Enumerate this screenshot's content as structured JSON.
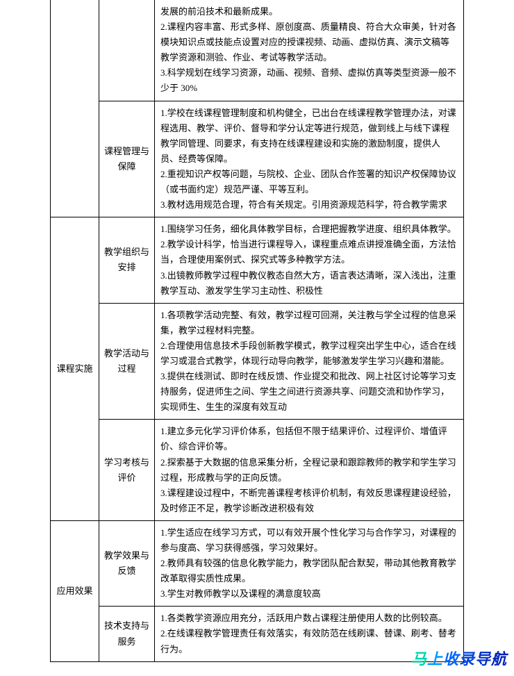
{
  "table": {
    "rows": [
      {
        "cat1": "",
        "cat2": "",
        "content": "发展的前沿技术和最新成果。\n2.课程内容丰富、形式多样、原创度高、质量精良、符合大众审美，针对各模块知识点或技能点设置对应的授课视频、动画、虚拟仿真、演示文稿等教学资源和测验、作业、考试等教学活动。\n3.科学规划在线学习资源，动画、视频、音频、虚拟仿真等类型资源一般不少于 30%"
      },
      {
        "cat1": "",
        "cat2": "课程管理与保障",
        "content": "1.学校在线课程管理制度和机构健全，已出台在线课程教学管理办法，对课程选用、教学、评价、督导和学分认定等进行规范，做到线上与线下课程教学同管理、同要求，有支持在线课程建设和实施的激励制度，提供人员、经费等保障。\n2.重视知识产权等问题，与院校、企业、团队合作签署的知识产权保障协议（或书面约定）规范严谨、平等互利。\n3.教材选用规范合理，符合有关规定。引用资源规范科学，符合教学需求"
      },
      {
        "cat1": "课程实施",
        "cat1_rowspan": 3,
        "cat2": "教学组织与安排",
        "content": "1.围绕学习任务，细化具体教学目标，合理把握教学进度、组织具体教学。\n2.教学设计科学，恰当进行课程导入，课程重点难点讲授准确全面，方法恰当，合理使用案例式、探究式等多种教学方法。\n3.出镜教师教学过程中教仪教态自然大方，语言表达清晰，深入浅出，注重教学互动、激发学生学习主动性、积极性"
      },
      {
        "cat2": "教学活动与过程",
        "content": "1.各项教学活动完整、有效，教学过程可回溯，关注教与学全过程的信息采集，教学过程材料完整。\n2.合理使用信息技术手段创新教学模式，教学过程突出学生中心，适合在线学习或混合式教学，体现行动导向教学，能够激发学生学习兴趣和潜能。\n3.提供在线测试、即时在线反馈、作业提交和批改、网上社区讨论等学习支持服务，促进师生之间、学生之间进行资源共享、问题交流和协作学习，实现师生、生生的深度有效互动"
      },
      {
        "cat2": "学习考核与评价",
        "content": "1.建立多元化学习评价体系，包括但不限于结果评价、过程评价、增值评价、综合评价等。\n2.探索基于大数据的信息采集分析，全程记录和跟踪教师的教学和学生学习过程，形成教与学的正向反馈。\n3.课程建设过程中，不断完善课程考核评价机制，有效反思课程建设经验，及时修正不足，教学诊断改进积极有效"
      },
      {
        "cat1": "应用效果",
        "cat1_rowspan": 2,
        "cat2": "教学效果与反馈",
        "content": "1.学生适应在线学习方式，可以有效开展个性化学习与合作学习，对课程的参与度高、学习获得感强，学习效果好。\n2.教师具有较强的信息化教学能力，教学团队配合默契，带动其他教育教学改革取得实质性成果。\n3.学生对教师教学以及课程的满意度较高"
      },
      {
        "cat2": "技术支持与服务",
        "content": "1.各类教学资源应用充分，活跃用户数占课程注册使用人数的比例较高。\n2.在线课程教学管理责任有效落实，有效防范在线刷课、替课、刷考、替考行为。"
      }
    ]
  },
  "watermark": {
    "text": "马上收录导航",
    "colors": [
      "#00d4aa",
      "#0099ff",
      "#0066ff",
      "#0044dd",
      "#0033cc",
      "#0022bb"
    ]
  },
  "styling": {
    "body_width": 740,
    "body_height": 876,
    "background_color": "#ffffff",
    "border_color": "#000000",
    "font_family": "SimSun",
    "font_size": 13,
    "line_height": 1.7,
    "text_color": "#000000",
    "padding_horizontal": 72,
    "col1_width": 70,
    "col2_width": 80
  }
}
